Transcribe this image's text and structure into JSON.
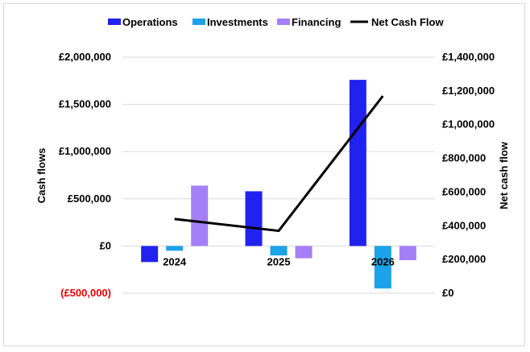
{
  "chart_data": {
    "type": "bar",
    "categories": [
      "2024",
      "2025",
      "2026"
    ],
    "series": [
      {
        "name": "Operations",
        "axis": "left",
        "kind": "bar",
        "color": "#2222ee",
        "values": [
          -170000,
          580000,
          1760000
        ]
      },
      {
        "name": "Investments",
        "axis": "left",
        "kind": "bar",
        "color": "#1aa3e8",
        "values": [
          -50000,
          -100000,
          -450000
        ]
      },
      {
        "name": "Financing",
        "axis": "left",
        "kind": "bar",
        "color": "#a57ff5",
        "values": [
          640000,
          -130000,
          -150000
        ]
      },
      {
        "name": "Net Cash Flow",
        "axis": "right",
        "kind": "line",
        "color": "#000000",
        "values": [
          440000,
          370000,
          1170000
        ]
      }
    ],
    "ylabel": "Cash flows",
    "y2label": "Net  cash flow",
    "ylim": [
      -500000,
      2000000
    ],
    "y2lim": [
      0,
      1400000
    ],
    "yticks": [
      {
        "value": -500000,
        "label": "(£500,000)",
        "color": "#e60000"
      },
      {
        "value": 0,
        "label": "£0"
      },
      {
        "value": 500000,
        "label": "£500,000"
      },
      {
        "value": 1000000,
        "label": "£1,000,000"
      },
      {
        "value": 1500000,
        "label": "£1,500,000"
      },
      {
        "value": 2000000,
        "label": "£2,000,000"
      }
    ],
    "y2ticks": [
      {
        "value": 0,
        "label": "£0"
      },
      {
        "value": 200000,
        "label": "£200,000"
      },
      {
        "value": 400000,
        "label": "£400,000"
      },
      {
        "value": 600000,
        "label": "£600,000"
      },
      {
        "value": 800000,
        "label": "£800,000"
      },
      {
        "value": 1000000,
        "label": "£1,000,000"
      },
      {
        "value": 1200000,
        "label": "£1,200,000"
      },
      {
        "value": 1400000,
        "label": "£1,400,000"
      }
    ],
    "grid": true,
    "legend": "top"
  }
}
